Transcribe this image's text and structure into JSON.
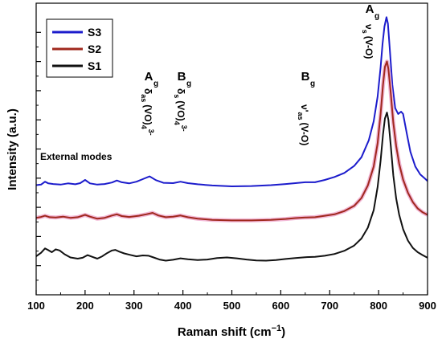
{
  "chart_data": {
    "type": "line",
    "title": "",
    "xlabel": "Raman shift (cm",
    "xlabel_sup": "−1",
    "xlabel_close": ")",
    "ylabel": "Intensity (a.u.)",
    "xlim": [
      100,
      900
    ],
    "ylim": [
      0,
      100
    ],
    "xticks": [
      100,
      200,
      300,
      400,
      500,
      600,
      700,
      800,
      900
    ],
    "grid": false,
    "legend_position": "top-left",
    "series": [
      {
        "name": "S3",
        "color": "#1c1ccc",
        "points": [
          [
            100,
            37.6
          ],
          [
            110,
            37.8
          ],
          [
            118,
            38.8
          ],
          [
            125,
            38.2
          ],
          [
            135,
            38.0
          ],
          [
            150,
            37.8
          ],
          [
            165,
            38.2
          ],
          [
            180,
            37.9
          ],
          [
            190,
            38.3
          ],
          [
            200,
            39.4
          ],
          [
            210,
            38.2
          ],
          [
            225,
            37.8
          ],
          [
            240,
            38.0
          ],
          [
            255,
            38.5
          ],
          [
            265,
            39.2
          ],
          [
            275,
            38.6
          ],
          [
            290,
            38.2
          ],
          [
            305,
            38.8
          ],
          [
            320,
            39.8
          ],
          [
            332,
            40.6
          ],
          [
            345,
            39.3
          ],
          [
            360,
            38.4
          ],
          [
            380,
            38.3
          ],
          [
            395,
            38.8
          ],
          [
            410,
            38.3
          ],
          [
            430,
            37.9
          ],
          [
            460,
            37.5
          ],
          [
            500,
            37.2
          ],
          [
            540,
            37.3
          ],
          [
            580,
            37.6
          ],
          [
            610,
            38.0
          ],
          [
            630,
            38.3
          ],
          [
            650,
            38.6
          ],
          [
            670,
            38.6
          ],
          [
            690,
            39.4
          ],
          [
            710,
            40.4
          ],
          [
            730,
            41.8
          ],
          [
            750,
            44.2
          ],
          [
            765,
            47.2
          ],
          [
            780,
            53.0
          ],
          [
            790,
            59.5
          ],
          [
            798,
            68.0
          ],
          [
            804,
            78.0
          ],
          [
            808,
            86.0
          ],
          [
            812,
            92.0
          ],
          [
            816,
            95.2
          ],
          [
            819,
            93.0
          ],
          [
            823,
            84.0
          ],
          [
            828,
            72.0
          ],
          [
            834,
            64.0
          ],
          [
            840,
            62.0
          ],
          [
            846,
            62.8
          ],
          [
            850,
            62.0
          ],
          [
            858,
            55.0
          ],
          [
            865,
            49.0
          ],
          [
            875,
            44.0
          ],
          [
            885,
            41.3
          ],
          [
            895,
            39.8
          ],
          [
            900,
            39.0
          ]
        ]
      },
      {
        "name": "S2",
        "color": "#a0281e",
        "points": [
          [
            100,
            26.4
          ],
          [
            110,
            26.7
          ],
          [
            118,
            27.1
          ],
          [
            128,
            26.6
          ],
          [
            140,
            26.5
          ],
          [
            155,
            26.8
          ],
          [
            170,
            26.4
          ],
          [
            185,
            26.6
          ],
          [
            200,
            27.4
          ],
          [
            210,
            26.8
          ],
          [
            225,
            26.1
          ],
          [
            240,
            26.4
          ],
          [
            255,
            27.2
          ],
          [
            265,
            27.6
          ],
          [
            275,
            27.0
          ],
          [
            290,
            26.7
          ],
          [
            310,
            27.1
          ],
          [
            325,
            27.6
          ],
          [
            338,
            28.1
          ],
          [
            350,
            27.2
          ],
          [
            365,
            26.6
          ],
          [
            380,
            26.8
          ],
          [
            395,
            27.2
          ],
          [
            410,
            26.6
          ],
          [
            430,
            26.1
          ],
          [
            460,
            25.7
          ],
          [
            500,
            25.5
          ],
          [
            540,
            25.5
          ],
          [
            580,
            25.7
          ],
          [
            610,
            26.0
          ],
          [
            630,
            26.3
          ],
          [
            650,
            26.5
          ],
          [
            670,
            26.6
          ],
          [
            690,
            27.1
          ],
          [
            710,
            27.6
          ],
          [
            730,
            28.7
          ],
          [
            750,
            30.5
          ],
          [
            765,
            33.2
          ],
          [
            778,
            37.5
          ],
          [
            790,
            44.0
          ],
          [
            798,
            52.0
          ],
          [
            804,
            62.0
          ],
          [
            809,
            72.0
          ],
          [
            813,
            78.2
          ],
          [
            817,
            80.0
          ],
          [
            820,
            77.5
          ],
          [
            825,
            69.0
          ],
          [
            830,
            59.0
          ],
          [
            836,
            51.0
          ],
          [
            842,
            45.0
          ],
          [
            850,
            39.5
          ],
          [
            860,
            35.0
          ],
          [
            870,
            31.8
          ],
          [
            880,
            29.6
          ],
          [
            890,
            28.3
          ],
          [
            900,
            27.4
          ]
        ]
      },
      {
        "name": "S1",
        "color": "#111111",
        "points": [
          [
            100,
            13.2
          ],
          [
            110,
            14.4
          ],
          [
            118,
            15.9
          ],
          [
            124,
            15.4
          ],
          [
            132,
            14.6
          ],
          [
            140,
            15.6
          ],
          [
            148,
            15.2
          ],
          [
            158,
            13.9
          ],
          [
            170,
            12.8
          ],
          [
            185,
            12.4
          ],
          [
            195,
            12.7
          ],
          [
            205,
            13.6
          ],
          [
            215,
            13.0
          ],
          [
            225,
            12.4
          ],
          [
            235,
            13.2
          ],
          [
            245,
            14.3
          ],
          [
            255,
            15.2
          ],
          [
            262,
            15.4
          ],
          [
            270,
            14.8
          ],
          [
            280,
            14.2
          ],
          [
            292,
            13.7
          ],
          [
            305,
            13.2
          ],
          [
            318,
            13.5
          ],
          [
            330,
            13.4
          ],
          [
            340,
            12.8
          ],
          [
            352,
            12.1
          ],
          [
            365,
            11.7
          ],
          [
            380,
            12.0
          ],
          [
            395,
            12.5
          ],
          [
            410,
            12.2
          ],
          [
            430,
            11.9
          ],
          [
            450,
            12.1
          ],
          [
            470,
            12.6
          ],
          [
            490,
            12.8
          ],
          [
            510,
            12.5
          ],
          [
            530,
            12.1
          ],
          [
            550,
            11.8
          ],
          [
            570,
            11.7
          ],
          [
            590,
            11.9
          ],
          [
            610,
            12.3
          ],
          [
            630,
            12.6
          ],
          [
            650,
            12.9
          ],
          [
            670,
            13.0
          ],
          [
            690,
            13.4
          ],
          [
            710,
            14.0
          ],
          [
            730,
            15.1
          ],
          [
            750,
            16.9
          ],
          [
            765,
            19.3
          ],
          [
            778,
            23.0
          ],
          [
            790,
            29.0
          ],
          [
            798,
            37.0
          ],
          [
            804,
            46.0
          ],
          [
            809,
            55.0
          ],
          [
            813,
            60.5
          ],
          [
            817,
            62.5
          ],
          [
            820,
            60.0
          ],
          [
            825,
            51.0
          ],
          [
            830,
            41.0
          ],
          [
            836,
            33.0
          ],
          [
            842,
            27.5
          ],
          [
            850,
            22.5
          ],
          [
            860,
            18.6
          ],
          [
            870,
            16.1
          ],
          [
            880,
            14.6
          ],
          [
            890,
            13.6
          ],
          [
            900,
            12.7
          ]
        ]
      }
    ],
    "annotations": {
      "external_modes": "External modes",
      "ag_left": {
        "main": "A",
        "sub": "g",
        "mode": "δ",
        "mode_sub": "as",
        "group": "(VO)",
        "group_sub": "4",
        "group_sup": "3-"
      },
      "bg_left": {
        "main": "B",
        "sub": "g",
        "mode": "δ",
        "mode_sub": "s",
        "group": "(VO)",
        "group_sub": "4",
        "group_sup": "3-"
      },
      "bg_mid": {
        "main": "B",
        "sub": "g",
        "mode": "ν'",
        "mode_sub": "as",
        "group": "(V-O)"
      },
      "ag_right": {
        "main": "A",
        "sub": "g",
        "mode": "ν",
        "mode_sub": "s",
        "group": "(V-O)"
      }
    }
  }
}
